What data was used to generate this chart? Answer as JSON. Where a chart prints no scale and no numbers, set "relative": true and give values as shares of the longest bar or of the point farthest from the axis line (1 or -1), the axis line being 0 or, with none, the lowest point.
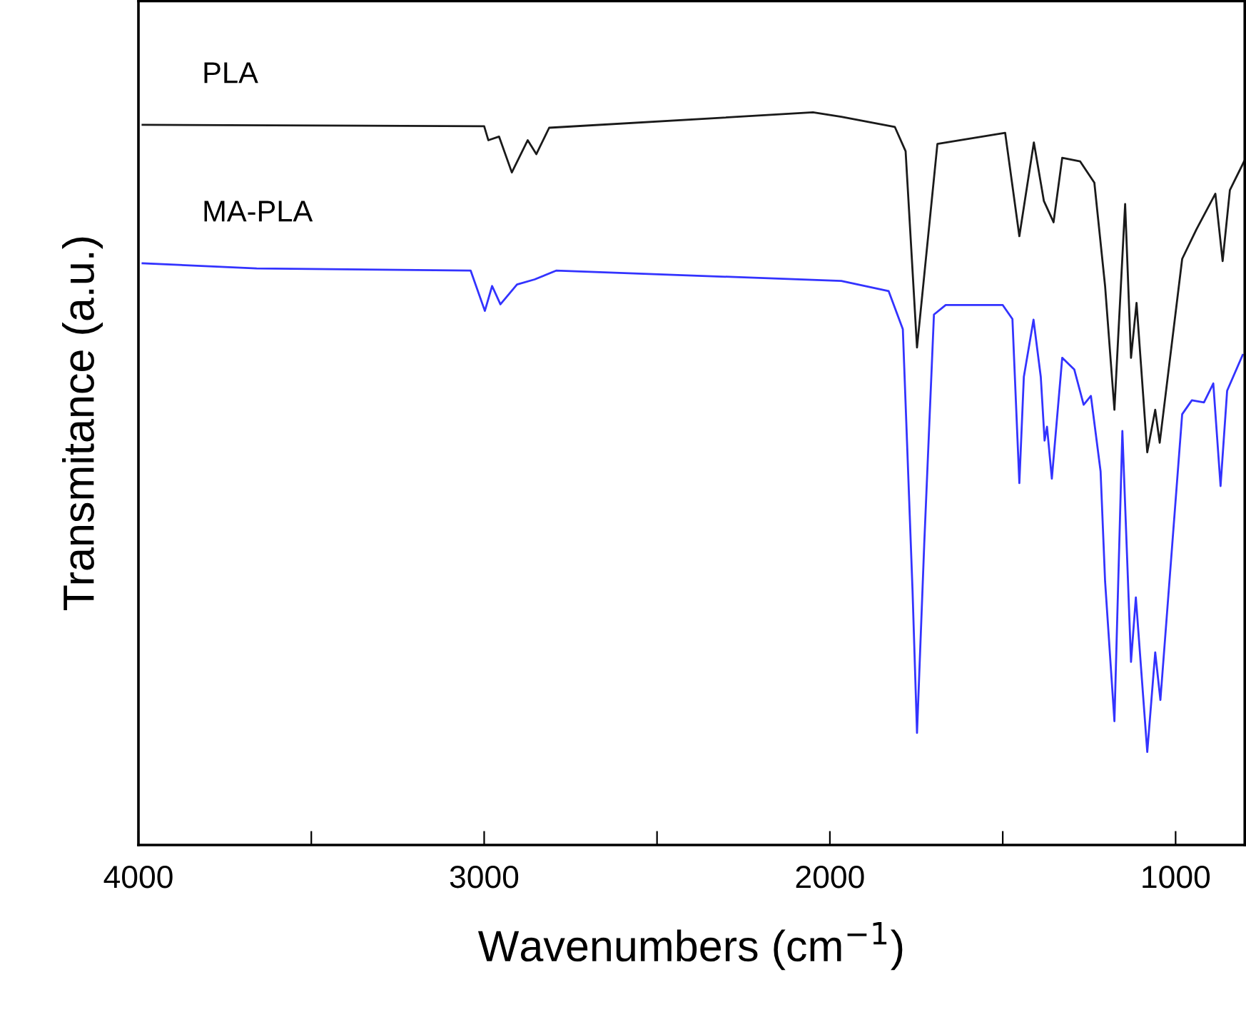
{
  "chart_data": {
    "type": "line",
    "xlabel": "Wavenumbers (cm$^{−1}$)",
    "ylabel": "Transmitance (a.u.)",
    "relative": true,
    "xlim": [
      4000,
      800
    ],
    "xticks": [
      4000,
      {
        "value": 3500,
        "label": null
      },
      3000,
      {
        "value": 2500,
        "label": null
      },
      2000,
      {
        "value": 1500,
        "label": null
      },
      1000
    ],
    "tick_labels": "x",
    "grid": false,
    "legend": false,
    "marker": "none",
    "line_style": "solid",
    "series": [
      {
        "name": "PLA",
        "color": "#1a1a1a",
        "x": [
          3988,
          3000,
          2988,
          2957,
          2920,
          2874,
          2849,
          2812,
          2049,
          1967,
          1812,
          1781,
          1748,
          1689,
          1493,
          1452,
          1410,
          1381,
          1353,
          1328,
          1276,
          1235,
          1204,
          1177,
          1146,
          1129,
          1113,
          1082,
          1059,
          1046,
          981,
          940,
          885,
          864,
          843,
          802
        ],
        "values": [
          0.983,
          0.981,
          0.962,
          0.967,
          0.918,
          0.962,
          0.943,
          0.979,
          1,
          0.994,
          0.98,
          0.947,
          0.679,
          0.957,
          0.972,
          0.831,
          0.959,
          0.879,
          0.85,
          0.938,
          0.933,
          0.904,
          0.763,
          0.594,
          0.875,
          0.665,
          0.74,
          0.536,
          0.594,
          0.549,
          0.8,
          0.84,
          0.889,
          0.797,
          0.894,
          0.933
        ]
      },
      {
        "name": "MA-PLA",
        "color": "#3333ff",
        "x": [
          3988,
          3658,
          3039,
          2998,
          2977,
          2953,
          2905,
          2854,
          2792,
          1967,
          1830,
          1789,
          1761,
          1748,
          1727,
          1699,
          1665,
          1500,
          1472,
          1452,
          1439,
          1411,
          1390,
          1379,
          1372,
          1358,
          1328,
          1293,
          1266,
          1245,
          1217,
          1204,
          1177,
          1154,
          1129,
          1115,
          1082,
          1059,
          1044,
          981,
          953,
          918,
          891,
          870,
          851,
          806
        ],
        "values": [
          0.794,
          0.787,
          0.784,
          0.729,
          0.763,
          0.738,
          0.765,
          0.772,
          0.784,
          0.77,
          0.756,
          0.704,
          0.348,
          0.153,
          0.412,
          0.724,
          0.737,
          0.737,
          0.718,
          0.494,
          0.639,
          0.717,
          0.639,
          0.552,
          0.571,
          0.5,
          0.665,
          0.649,
          0.601,
          0.613,
          0.51,
          0.36,
          0.169,
          0.565,
          0.25,
          0.338,
          0.127,
          0.263,
          0.198,
          0.588,
          0.607,
          0.604,
          0.63,
          0.49,
          0.62,
          0.669
        ]
      }
    ]
  }
}
